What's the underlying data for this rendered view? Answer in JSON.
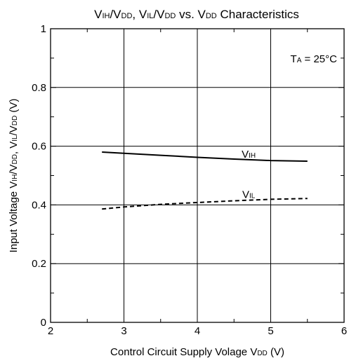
{
  "chart_data": {
    "type": "line",
    "title": {
      "parts": [
        {
          "text": "V"
        },
        {
          "text": "IH",
          "sub": true
        },
        {
          "text": "/V"
        },
        {
          "text": "DD",
          "sub": true
        },
        {
          "text": ", V"
        },
        {
          "text": "IL",
          "sub": true
        },
        {
          "text": "/V"
        },
        {
          "text": "DD",
          "sub": true
        },
        {
          "text": " vs. V"
        },
        {
          "text": "DD",
          "sub": true
        },
        {
          "text": " Characteristics"
        }
      ]
    },
    "xlabel": {
      "parts": [
        {
          "text": "Control Circuit Supply Volage V"
        },
        {
          "text": "DD",
          "sub": true
        },
        {
          "text": " (V)"
        }
      ]
    },
    "ylabel": {
      "parts": [
        {
          "text": "Input Voltage V"
        },
        {
          "text": "IH",
          "sub": true
        },
        {
          "text": "/V"
        },
        {
          "text": "DD",
          "sub": true
        },
        {
          "text": ", V"
        },
        {
          "text": "IL",
          "sub": true
        },
        {
          "text": "/V"
        },
        {
          "text": "DD",
          "sub": true
        },
        {
          "text": " (V)"
        }
      ]
    },
    "xlim": [
      2,
      6
    ],
    "ylim": [
      0,
      1
    ],
    "xticks": [
      2,
      3,
      4,
      5,
      6
    ],
    "xtick_labels": [
      "2",
      "3",
      "4",
      "5",
      "6"
    ],
    "yticks": [
      0,
      0.2,
      0.4,
      0.6,
      0.8,
      1
    ],
    "ytick_labels": [
      "0",
      "0.2",
      "0.4",
      "0.6",
      "0.8",
      "1"
    ],
    "grid": true,
    "annotation": {
      "parts": [
        {
          "text": "T"
        },
        {
          "text": "A",
          "sub": true
        },
        {
          "text": " = 25°C"
        }
      ]
    },
    "series": [
      {
        "label_parts": [
          {
            "text": "V"
          },
          {
            "text": "IH",
            "sub": true
          }
        ],
        "style": "solid",
        "color": "#000000",
        "x": [
          2.7,
          3.0,
          3.5,
          4.0,
          4.5,
          5.0,
          5.5
        ],
        "y": [
          0.58,
          0.576,
          0.569,
          0.562,
          0.556,
          0.551,
          0.549
        ]
      },
      {
        "label_parts": [
          {
            "text": "V"
          },
          {
            "text": "IL",
            "sub": true
          }
        ],
        "style": "dashed",
        "color": "#000000",
        "x": [
          2.7,
          3.0,
          3.5,
          4.0,
          4.5,
          5.0,
          5.5
        ],
        "y": [
          0.386,
          0.393,
          0.402,
          0.408,
          0.414,
          0.419,
          0.422
        ]
      }
    ]
  }
}
